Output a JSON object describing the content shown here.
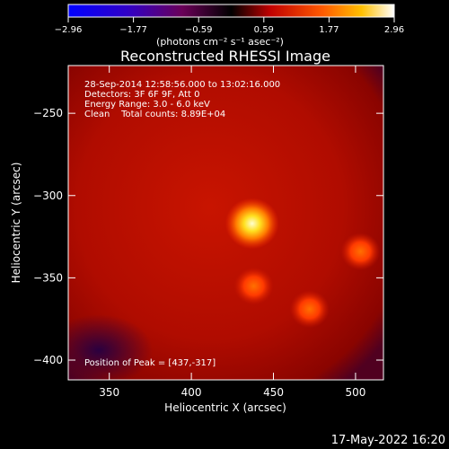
{
  "chart_data": {
    "type": "heatmap",
    "title": "Reconstructed RHESSI Image",
    "xlabel": "Heliocentric X (arcsec)",
    "ylabel": "Heliocentric Y (arcsec)",
    "xlim": [
      325,
      517
    ],
    "ylim": [
      -412,
      -221
    ],
    "x_ticks": [
      350,
      400,
      450,
      500
    ],
    "y_ticks": [
      -250,
      -300,
      -350,
      -400
    ],
    "colorbar": {
      "label": "(photons cm⁻² s⁻¹ asec⁻²)",
      "range": [
        -2.96,
        2.96
      ],
      "tick_labels": [
        "−2.96",
        "−1.77",
        "−0.59",
        "0.59",
        "1.77",
        "2.96"
      ],
      "colormap": "red-temperature"
    },
    "annotations": [
      "28-Sep-2014 12:58:56.000 to 13:02:16.000",
      "Detectors: 3F 6F 9F, Att 0",
      "Energy Range: 3.0 - 6.0 keV",
      "Clean    Total counts: 8.89E+04"
    ],
    "peak_label": "Position of Peak = [437,-317]",
    "peak": {
      "x": 437,
      "y": -317
    },
    "sources": [
      {
        "x": 437,
        "y": -317,
        "value": 2.96
      },
      {
        "x": 503,
        "y": -334,
        "value": 1.4
      },
      {
        "x": 438,
        "y": -355,
        "value": 1.3
      },
      {
        "x": 472,
        "y": -369,
        "value": 1.0
      }
    ],
    "grid": false
  },
  "footer": {
    "timestamp": "17-May-2022 16:20"
  },
  "colors": {
    "background": "#000000",
    "foreground": "#ffffff"
  }
}
